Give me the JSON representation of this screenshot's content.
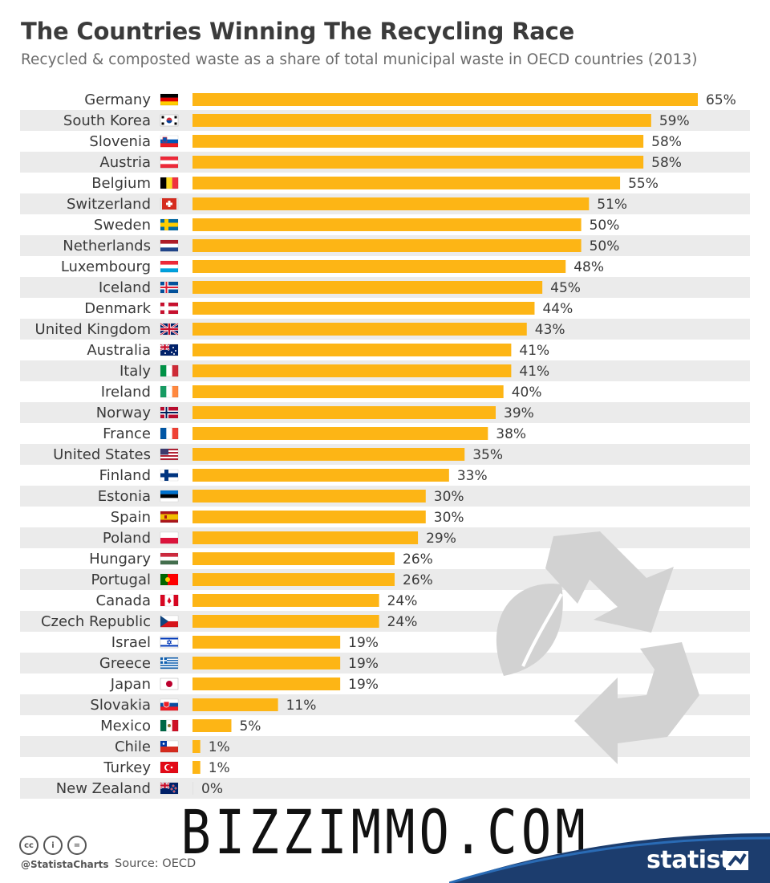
{
  "header": {
    "title": "The Countries Winning The Recycling Race",
    "subtitle": "Recycled & composted waste as a share of total municipal waste in OECD countries (2013)"
  },
  "chart_data": {
    "type": "bar",
    "orientation": "horizontal",
    "title": "The Countries Winning The Recycling Race",
    "subtitle": "Recycled & composted waste as a share of total municipal waste in OECD countries (2013)",
    "xlim": [
      0,
      65
    ],
    "value_suffix": "%",
    "bar_color": "#fdb515",
    "categories": [
      "Germany",
      "South Korea",
      "Slovenia",
      "Austria",
      "Belgium",
      "Switzerland",
      "Sweden",
      "Netherlands",
      "Luxembourg",
      "Iceland",
      "Denmark",
      "United Kingdom",
      "Australia",
      "Italy",
      "Ireland",
      "Norway",
      "France",
      "United States",
      "Finland",
      "Estonia",
      "Spain",
      "Poland",
      "Hungary",
      "Portugal",
      "Canada",
      "Czech Republic",
      "Israel",
      "Greece",
      "Japan",
      "Slovakia",
      "Mexico",
      "Chile",
      "Turkey",
      "New Zealand"
    ],
    "values": [
      65,
      59,
      58,
      58,
      55,
      51,
      50,
      50,
      48,
      45,
      44,
      43,
      41,
      41,
      40,
      39,
      38,
      35,
      33,
      30,
      30,
      29,
      26,
      26,
      24,
      24,
      19,
      19,
      19,
      11,
      5,
      1,
      1,
      0
    ],
    "flags": [
      "de",
      "kr",
      "si",
      "at",
      "be",
      "ch",
      "se",
      "nl",
      "lu",
      "is",
      "dk",
      "gb",
      "au",
      "it",
      "ie",
      "no",
      "fr",
      "us",
      "fi",
      "ee",
      "es",
      "pl",
      "hu",
      "pt",
      "ca",
      "cz",
      "il",
      "gr",
      "jp",
      "sk",
      "mx",
      "cl",
      "tr",
      "nz"
    ]
  },
  "watermark": "BIZZIMMO.COM",
  "footer": {
    "cc_icons": [
      "cc",
      "by",
      "nd"
    ],
    "handle": "@StatistaCharts",
    "source": "Source: OECD",
    "brand": "statista",
    "brand_color": "#1c3d6e"
  }
}
